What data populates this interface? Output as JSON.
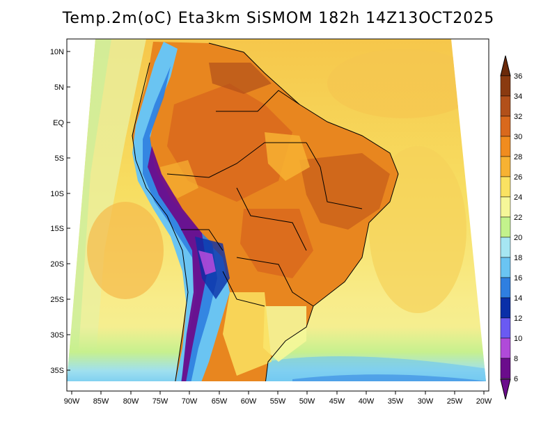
{
  "title": "Temp.2m(oC) Eta3km SiSMOM 182h 14Z13OCT2025",
  "lat_labels": [
    "10N",
    "5N",
    "EQ",
    "5S",
    "10S",
    "15S",
    "20S",
    "25S",
    "30S",
    "35S"
  ],
  "lon_labels": [
    "90W",
    "85W",
    "80W",
    "75W",
    "70W",
    "65W",
    "60W",
    "55W",
    "50W",
    "45W",
    "40W",
    "35W",
    "30W",
    "25W",
    "20W"
  ],
  "colorbar": {
    "labels": [
      "36",
      "34",
      "32",
      "30",
      "28",
      "26",
      "24",
      "22",
      "20",
      "18",
      "16",
      "14",
      "12",
      "10",
      "8",
      "6"
    ],
    "colors": [
      "#6b2a0a",
      "#8a3a10",
      "#b2501a",
      "#d9691d",
      "#f08c1f",
      "#f7b233",
      "#fae262",
      "#f5f799",
      "#c3f28c",
      "#a6e6f2",
      "#6ac4f2",
      "#2f7fe0",
      "#0a2fa8",
      "#6a5af2",
      "#b04ad9",
      "#6b0d8c"
    ]
  },
  "map_palette": {
    "ocean_warm": "#f5d25a",
    "ocean_mid": "#f7e97a",
    "ocean_cool": "#f2f7a0",
    "land_hot": "#e8861f",
    "land_very_hot": "#c9601a",
    "andes_cold": "#6a0d8c",
    "andes_mid": "#2f6fe0",
    "south_cool": "#8fd6ea"
  }
}
